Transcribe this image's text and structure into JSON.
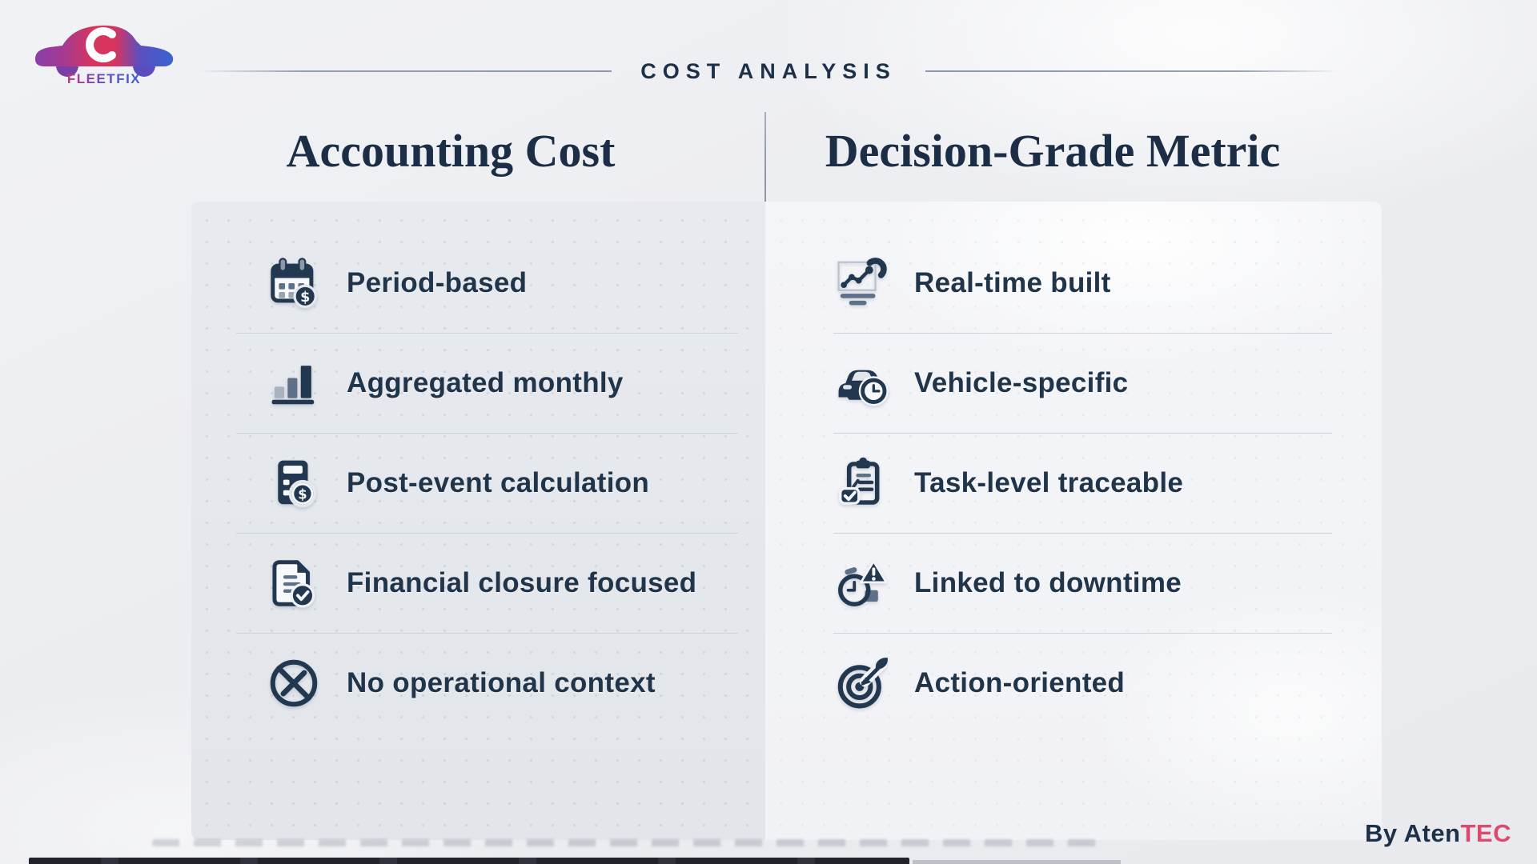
{
  "brand": {
    "logo_text": "FLEETFIX"
  },
  "header": {
    "title": "COST ANALYSIS"
  },
  "columns": [
    {
      "title": "Accounting Cost",
      "items": [
        {
          "icon": "calendar-dollar-icon",
          "label": "Period-based"
        },
        {
          "icon": "bar-chart-icon",
          "label": "Aggregated monthly"
        },
        {
          "icon": "calculator-dollar-icon",
          "label": "Post-event calculation"
        },
        {
          "icon": "document-check-icon",
          "label": "Financial closure focused"
        },
        {
          "icon": "no-operations-icon",
          "label": "No operational context"
        }
      ]
    },
    {
      "title": "Decision-Grade Metric",
      "items": [
        {
          "icon": "monitor-trend-icon",
          "label": "Real-time built"
        },
        {
          "icon": "car-clock-icon",
          "label": "Vehicle-specific"
        },
        {
          "icon": "clipboard-check-icon",
          "label": "Task-level traceable"
        },
        {
          "icon": "clock-alert-icon",
          "label": "Linked to downtime"
        },
        {
          "icon": "target-arrow-icon",
          "label": "Action-oriented"
        }
      ]
    }
  ],
  "footer": {
    "credit_prefix": "By Aten",
    "credit_suffix": "TEC"
  },
  "colors": {
    "navy": "#223850",
    "slate": "#5d7088",
    "light_gray": "#a9b3bf",
    "separator": "#cdd2da",
    "accent_pink": "#dc4a6e",
    "logo_red": "#d8355e",
    "logo_purple": "#8a3fa8",
    "logo_blue": "#3a63cf"
  }
}
